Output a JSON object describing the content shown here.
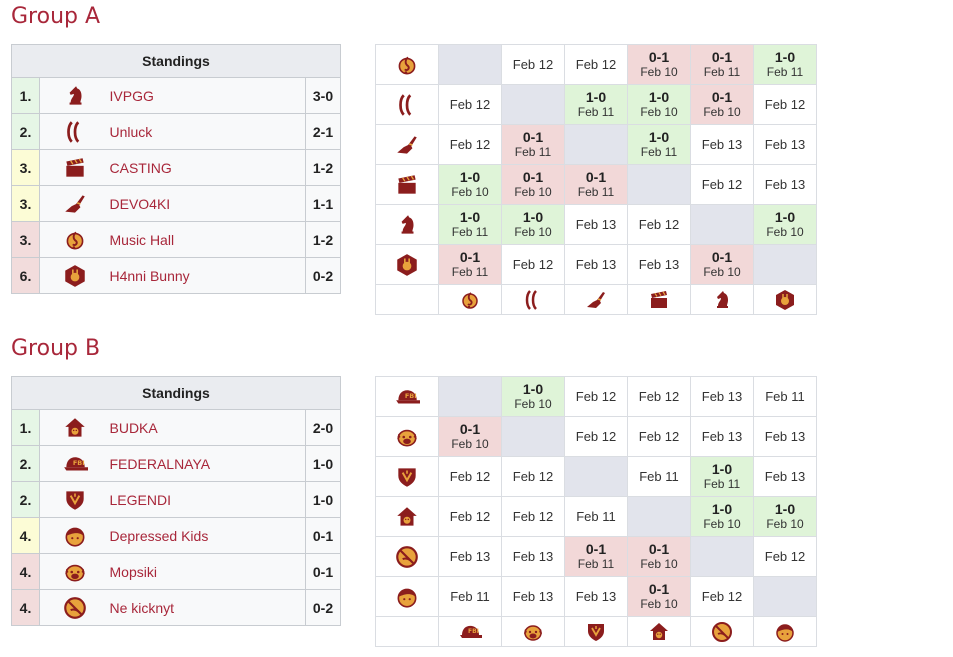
{
  "colors": {
    "accent": "#a8273a",
    "win": "#dff4d8",
    "loss": "#f2d8d8",
    "self": "#e2e4ec",
    "icon": "#8b1d1d",
    "icon_fill": "#e8a23c"
  },
  "groupA": {
    "title": "Group A",
    "standings_header": "Standings",
    "rows": [
      {
        "rank": "1.",
        "team": "IVPGG",
        "score": "3-0",
        "icon": "knight-icon"
      },
      {
        "rank": "2.",
        "team": "Unluck",
        "score": "2-1",
        "icon": "parentheses-icon"
      },
      {
        "rank": "3.",
        "team": "CASTING",
        "score": "1-2",
        "icon": "clapperboard-icon"
      },
      {
        "rank": "3.",
        "team": "DEVO4KI",
        "score": "1-1",
        "icon": "hand-icon"
      },
      {
        "rank": "3.",
        "team": "Music Hall",
        "score": "1-2",
        "icon": "treble-clef-icon"
      },
      {
        "rank": "6.",
        "team": "H4nni Bunny",
        "score": "0-2",
        "icon": "bunny-badge-icon"
      }
    ]
  },
  "groupB": {
    "title": "Group B",
    "standings_header": "Standings",
    "rows": [
      {
        "rank": "1.",
        "team": "BUDKA",
        "score": "2-0",
        "icon": "doghouse-icon"
      },
      {
        "rank": "2.",
        "team": "FEDERALNAYA",
        "score": "1-0",
        "icon": "fbi-cap-icon"
      },
      {
        "rank": "2.",
        "team": "LEGENDI",
        "score": "1-0",
        "icon": "shield-crest-icon"
      },
      {
        "rank": "4.",
        "team": "Depressed Kids",
        "score": "0-1",
        "icon": "kid-face-icon"
      },
      {
        "rank": "4.",
        "team": "Mopsiki",
        "score": "0-1",
        "icon": "pug-icon"
      },
      {
        "rank": "4.",
        "team": "Ne kicknyt",
        "score": "0-2",
        "icon": "no-kick-icon"
      }
    ]
  },
  "crossA": {
    "row_icons": [
      "treble-clef-icon",
      "parentheses-icon",
      "hand-icon",
      "clapperboard-icon",
      "knight-icon",
      "bunny-badge-icon"
    ],
    "col_icons": [
      "treble-clef-icon",
      "parentheses-icon",
      "hand-icon",
      "clapperboard-icon",
      "knight-icon",
      "bunny-badge-icon"
    ],
    "cells": [
      [
        {
          "t": "self"
        },
        {
          "t": "plain",
          "d": "Feb 12"
        },
        {
          "t": "plain",
          "d": "Feb 12"
        },
        {
          "t": "loss",
          "r": "0-1",
          "d": "Feb 10"
        },
        {
          "t": "loss",
          "r": "0-1",
          "d": "Feb 11"
        },
        {
          "t": "win",
          "r": "1-0",
          "d": "Feb 11"
        }
      ],
      [
        {
          "t": "plain",
          "d": "Feb 12"
        },
        {
          "t": "self"
        },
        {
          "t": "win",
          "r": "1-0",
          "d": "Feb 11"
        },
        {
          "t": "win",
          "r": "1-0",
          "d": "Feb 10"
        },
        {
          "t": "loss",
          "r": "0-1",
          "d": "Feb 10"
        },
        {
          "t": "plain",
          "d": "Feb 12"
        }
      ],
      [
        {
          "t": "plain",
          "d": "Feb 12"
        },
        {
          "t": "loss",
          "r": "0-1",
          "d": "Feb 11"
        },
        {
          "t": "self"
        },
        {
          "t": "win",
          "r": "1-0",
          "d": "Feb 11"
        },
        {
          "t": "plain",
          "d": "Feb 13"
        },
        {
          "t": "plain",
          "d": "Feb 13"
        }
      ],
      [
        {
          "t": "win",
          "r": "1-0",
          "d": "Feb 10"
        },
        {
          "t": "loss",
          "r": "0-1",
          "d": "Feb 10"
        },
        {
          "t": "loss",
          "r": "0-1",
          "d": "Feb 11"
        },
        {
          "t": "self"
        },
        {
          "t": "plain",
          "d": "Feb 12"
        },
        {
          "t": "plain",
          "d": "Feb 13"
        }
      ],
      [
        {
          "t": "win",
          "r": "1-0",
          "d": "Feb 11"
        },
        {
          "t": "win",
          "r": "1-0",
          "d": "Feb 10"
        },
        {
          "t": "plain",
          "d": "Feb 13"
        },
        {
          "t": "plain",
          "d": "Feb 12"
        },
        {
          "t": "self"
        },
        {
          "t": "win",
          "r": "1-0",
          "d": "Feb 10"
        }
      ],
      [
        {
          "t": "loss",
          "r": "0-1",
          "d": "Feb 11"
        },
        {
          "t": "plain",
          "d": "Feb 12"
        },
        {
          "t": "plain",
          "d": "Feb 13"
        },
        {
          "t": "plain",
          "d": "Feb 13"
        },
        {
          "t": "loss",
          "r": "0-1",
          "d": "Feb 10"
        },
        {
          "t": "self"
        }
      ]
    ]
  },
  "crossB": {
    "row_icons": [
      "fbi-cap-icon",
      "pug-icon",
      "shield-crest-icon",
      "doghouse-icon",
      "no-kick-icon",
      "kid-face-icon"
    ],
    "col_icons": [
      "fbi-cap-icon",
      "pug-icon",
      "shield-crest-icon",
      "doghouse-icon",
      "no-kick-icon",
      "kid-face-icon"
    ],
    "cells": [
      [
        {
          "t": "self"
        },
        {
          "t": "win",
          "r": "1-0",
          "d": "Feb 10"
        },
        {
          "t": "plain",
          "d": "Feb 12"
        },
        {
          "t": "plain",
          "d": "Feb 12"
        },
        {
          "t": "plain",
          "d": "Feb 13"
        },
        {
          "t": "plain",
          "d": "Feb 11"
        }
      ],
      [
        {
          "t": "loss",
          "r": "0-1",
          "d": "Feb 10"
        },
        {
          "t": "self"
        },
        {
          "t": "plain",
          "d": "Feb 12"
        },
        {
          "t": "plain",
          "d": "Feb 12"
        },
        {
          "t": "plain",
          "d": "Feb 13"
        },
        {
          "t": "plain",
          "d": "Feb 13"
        }
      ],
      [
        {
          "t": "plain",
          "d": "Feb 12"
        },
        {
          "t": "plain",
          "d": "Feb 12"
        },
        {
          "t": "self"
        },
        {
          "t": "plain",
          "d": "Feb 11"
        },
        {
          "t": "win",
          "r": "1-0",
          "d": "Feb 11"
        },
        {
          "t": "plain",
          "d": "Feb 13"
        }
      ],
      [
        {
          "t": "plain",
          "d": "Feb 12"
        },
        {
          "t": "plain",
          "d": "Feb 12"
        },
        {
          "t": "plain",
          "d": "Feb 11"
        },
        {
          "t": "self"
        },
        {
          "t": "win",
          "r": "1-0",
          "d": "Feb 10"
        },
        {
          "t": "win",
          "r": "1-0",
          "d": "Feb 10"
        }
      ],
      [
        {
          "t": "plain",
          "d": "Feb 13"
        },
        {
          "t": "plain",
          "d": "Feb 13"
        },
        {
          "t": "loss",
          "r": "0-1",
          "d": "Feb 11"
        },
        {
          "t": "loss",
          "r": "0-1",
          "d": "Feb 10"
        },
        {
          "t": "self"
        },
        {
          "t": "plain",
          "d": "Feb 12"
        }
      ],
      [
        {
          "t": "plain",
          "d": "Feb 11"
        },
        {
          "t": "plain",
          "d": "Feb 13"
        },
        {
          "t": "plain",
          "d": "Feb 13"
        },
        {
          "t": "loss",
          "r": "0-1",
          "d": "Feb 10"
        },
        {
          "t": "plain",
          "d": "Feb 12"
        },
        {
          "t": "self"
        }
      ]
    ]
  }
}
